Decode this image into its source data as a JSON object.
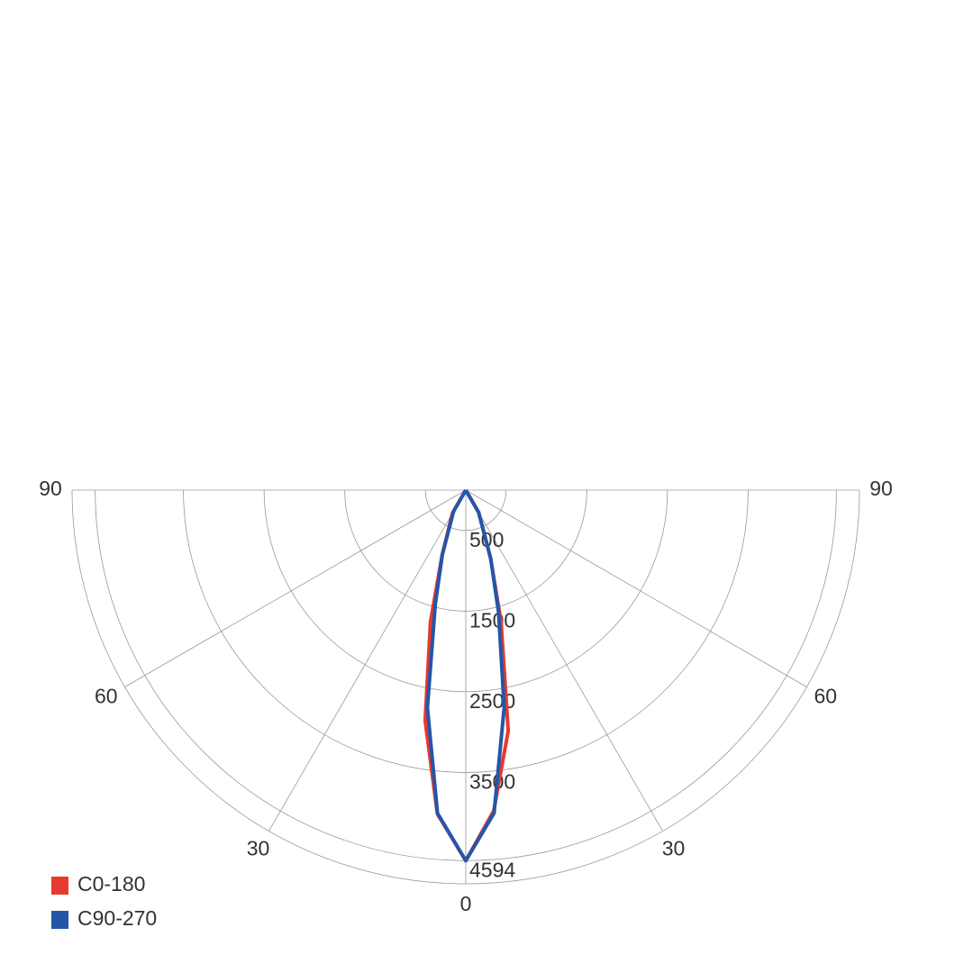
{
  "chart_data": {
    "type": "polar",
    "angles": [
      -90,
      -60,
      -30,
      -20,
      -15,
      -10,
      -5,
      0,
      5,
      10,
      15,
      20,
      30,
      60,
      90
    ],
    "series": [
      {
        "name": "C0-180",
        "color": "#e8392e",
        "values": [
          0,
          0,
          330,
          860,
          1690,
          2900,
          4030,
          4594,
          3990,
          3030,
          1690,
          900,
          320,
          0,
          0
        ]
      },
      {
        "name": "C90-270",
        "color": "#2456a8",
        "values": [
          0,
          0,
          300,
          850,
          1460,
          2740,
          4020,
          4594,
          4020,
          2740,
          1570,
          900,
          320,
          0,
          0
        ]
      }
    ],
    "rlim": [
      0,
      4880
    ],
    "rticks": [
      500,
      1500,
      2500,
      3500,
      4594
    ],
    "angle_ticks": [
      {
        "value": -90,
        "label": "90"
      },
      {
        "value": -60,
        "label": "60"
      },
      {
        "value": -30,
        "label": "30"
      },
      0,
      30,
      60,
      90
    ],
    "grid": true
  }
}
